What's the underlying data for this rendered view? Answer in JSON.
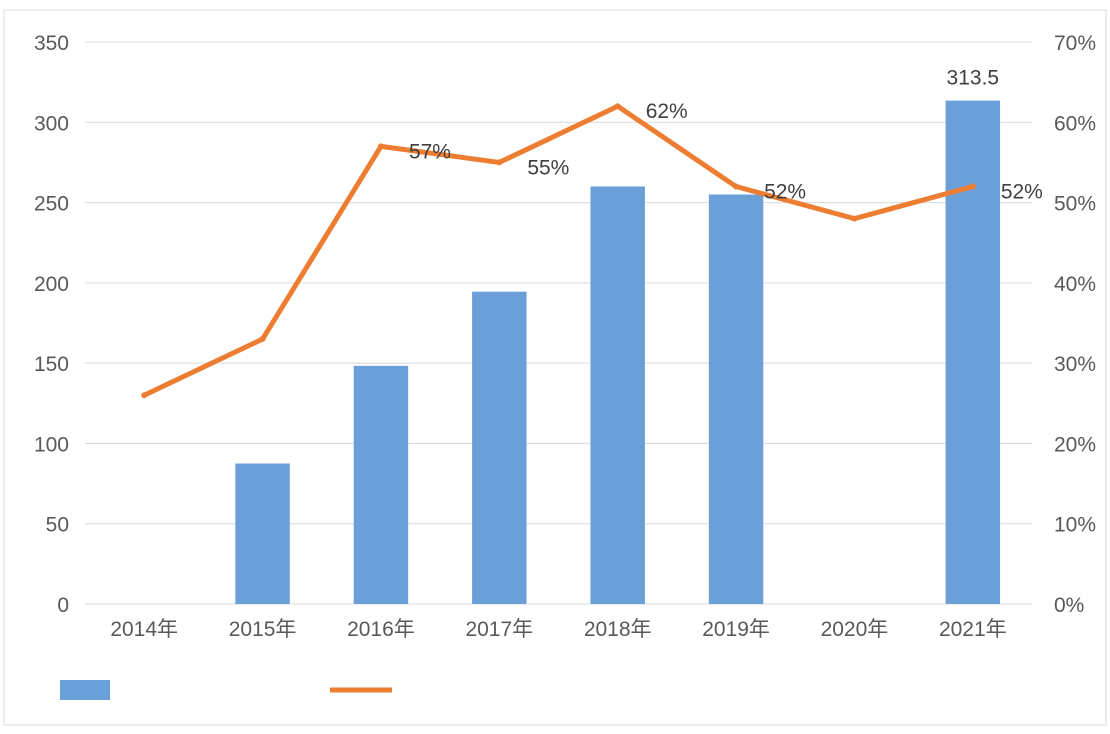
{
  "colors": {
    "bars": "#6A9FD8",
    "line": "#ED7D31",
    "grid": "#D9D9D9",
    "axis_text": "#595959",
    "label_text": "#404040",
    "border": "#D9D9D9"
  },
  "chart_data": {
    "type": "bar",
    "categories": [
      "2014年",
      "2015年",
      "2016年",
      "2017年",
      "2018年",
      "2019年",
      "2020年",
      "2021年"
    ],
    "series": [
      {
        "name": "",
        "kind": "bar",
        "axis": "left",
        "values": [
          null,
          87.5,
          148.3,
          194.5,
          260.0,
          255.0,
          null,
          313.5
        ],
        "data_labels": [
          "",
          "",
          "",
          "",
          "",
          "",
          "",
          "313.5"
        ]
      },
      {
        "name": "",
        "kind": "line",
        "axis": "right",
        "values": [
          0.26,
          0.33,
          0.57,
          0.55,
          0.62,
          0.52,
          0.48,
          0.52
        ],
        "data_labels": [
          "",
          "",
          "57%",
          "55%",
          "62%",
          "52%",
          "",
          "52%"
        ]
      }
    ],
    "left_axis": {
      "ylim": [
        0,
        350
      ],
      "ticks": [
        "0",
        "50",
        "100",
        "150",
        "200",
        "250",
        "300",
        "350"
      ]
    },
    "right_axis": {
      "ylim": [
        0,
        0.7
      ],
      "ticks": [
        "0%",
        "10%",
        "20%",
        "30%",
        "40%",
        "50%",
        "60%",
        "70%"
      ]
    },
    "grid": true,
    "legend": "bottom-left"
  }
}
